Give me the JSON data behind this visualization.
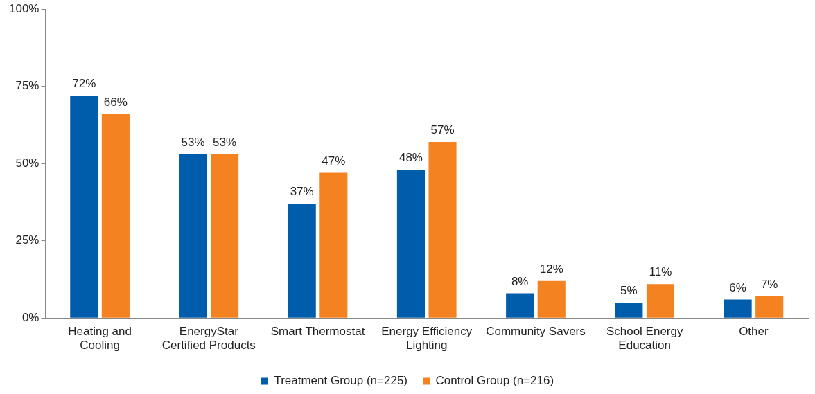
{
  "chart_data": {
    "type": "bar",
    "categories": [
      "Heating and Cooling",
      "EnergyStar Certified Products",
      "Smart Thermostat",
      "Energy Efficiency Lighting",
      "Community Savers",
      "School Energy Education",
      "Other"
    ],
    "series": [
      {
        "name": "Treatment Group (n=225)",
        "color": "#005dab",
        "values": [
          72,
          53,
          37,
          48,
          8,
          5,
          6
        ],
        "value_labels": [
          "72%",
          "53%",
          "37%",
          "48%",
          "8%",
          "5%",
          "6%"
        ]
      },
      {
        "name": "Control Group (n=216)",
        "color": "#f58220",
        "values": [
          66,
          53,
          47,
          57,
          12,
          11,
          7
        ],
        "value_labels": [
          "66%",
          "53%",
          "47%",
          "57%",
          "12%",
          "11%",
          "7%"
        ]
      }
    ],
    "ylim": [
      0,
      100
    ],
    "yticks": [
      {
        "value": 0,
        "label": "0%"
      },
      {
        "value": 25,
        "label": "25%"
      },
      {
        "value": 50,
        "label": "50%"
      },
      {
        "value": 75,
        "label": "75%"
      },
      {
        "value": 100,
        "label": "100%"
      }
    ],
    "grid": false,
    "legend": "bottom"
  }
}
